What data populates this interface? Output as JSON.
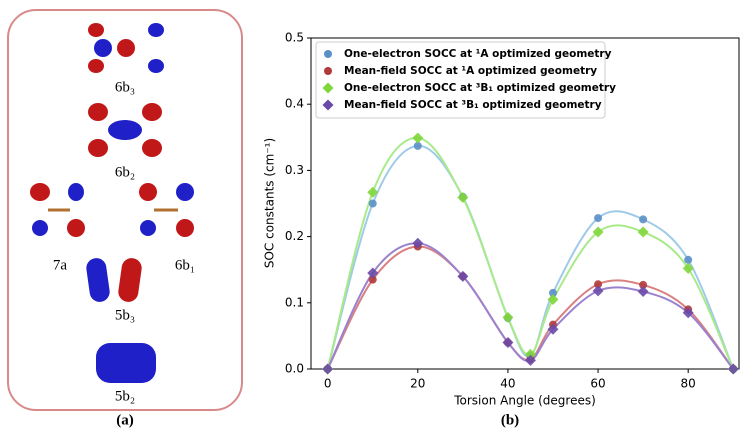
{
  "panel_a": {
    "labels": [
      "6b₃",
      "6b₂",
      "7a",
      "6b₁",
      "5b₃",
      "5b₂"
    ],
    "caption": "(a)"
  },
  "chart_data": {
    "type": "line",
    "caption": "(b)",
    "x_label": "Torsion Angle (degrees)",
    "y_label": "SOC constants (cm⁻¹)",
    "x": [
      0,
      10,
      20,
      30,
      40,
      45,
      50,
      60,
      70,
      80,
      90
    ],
    "xlim": [
      -3.7,
      91.5
    ],
    "xticks": [
      0,
      20,
      40,
      60,
      80
    ],
    "ylim": [
      0,
      0.5
    ],
    "yticks": [
      {
        "value": 0,
        "label": "0.0"
      },
      0.1,
      0.2,
      0.3,
      0.4,
      0.5
    ],
    "legend": "upper left",
    "series": [
      {
        "name": "One-electron SOCC at ¹A optimized geometry",
        "color": "#5b8fc7",
        "line_color": "#9fcbe8",
        "marker": "circle",
        "values": [
          0,
          0.25,
          0.337,
          0.26,
          0.077,
          0.02,
          0.115,
          0.228,
          0.226,
          0.165,
          0
        ]
      },
      {
        "name": "Mean-field SOCC at ¹A optimized geometry",
        "color": "#b03a3a",
        "line_color": "#d98080",
        "marker": "circle",
        "values": [
          0,
          0.135,
          0.185,
          0.14,
          0.04,
          0.015,
          0.067,
          0.128,
          0.127,
          0.09,
          0
        ]
      },
      {
        "name": "One-electron SOCC at ³B₁ optimized geometry",
        "color": "#7fd63a",
        "line_color": "#a8ea8a",
        "marker": "diamond",
        "values": [
          0,
          0.267,
          0.349,
          0.259,
          0.078,
          0.022,
          0.105,
          0.207,
          0.207,
          0.152,
          0
        ]
      },
      {
        "name": "Mean-field SOCC at ³B₁ optimized geometry",
        "color": "#6a4aa8",
        "line_color": "#9b82cf",
        "marker": "diamond",
        "values": [
          0,
          0.145,
          0.19,
          0.14,
          0.04,
          0.013,
          0.06,
          0.118,
          0.117,
          0.085,
          0
        ]
      }
    ]
  }
}
